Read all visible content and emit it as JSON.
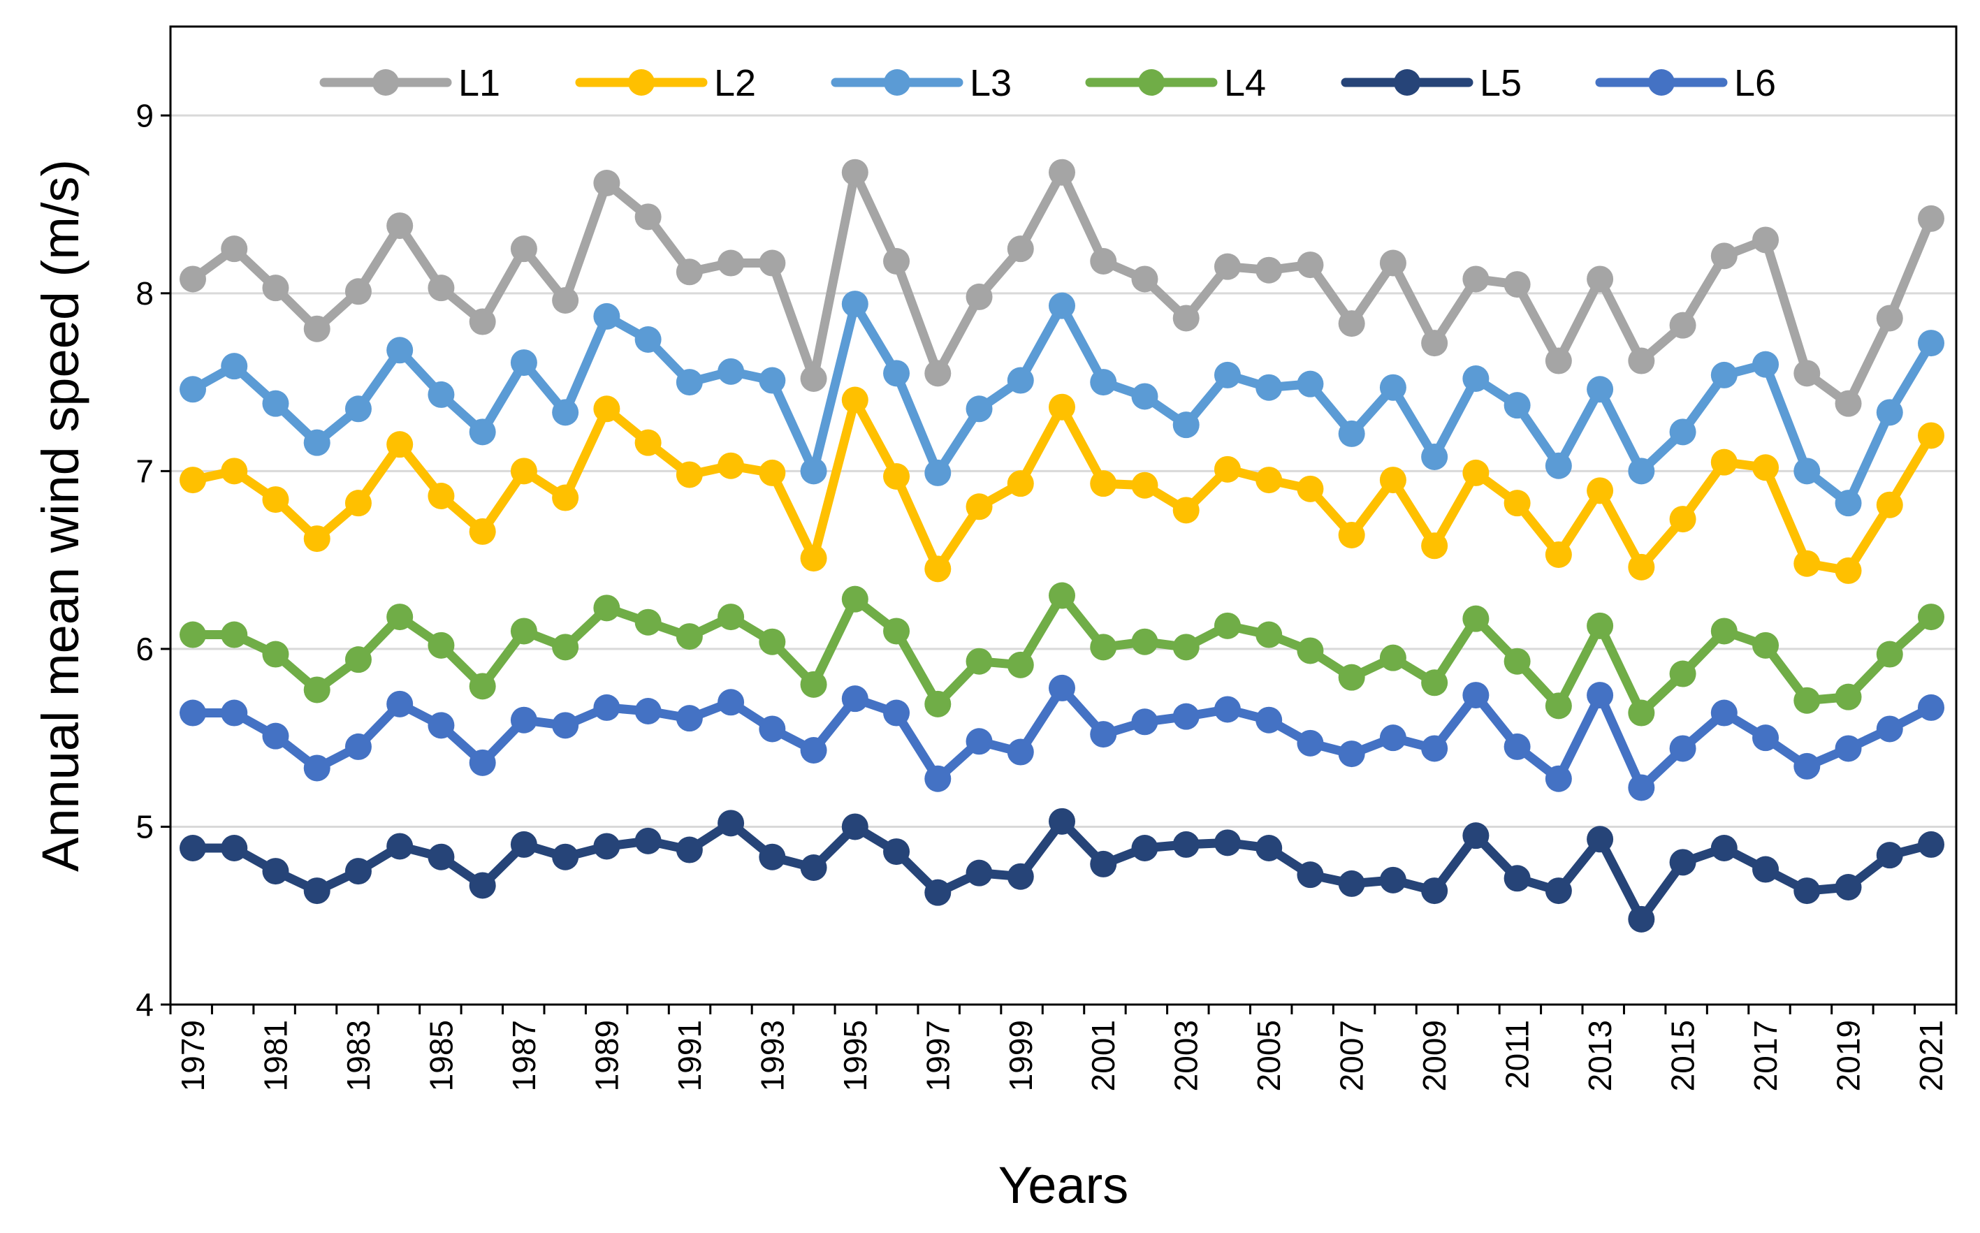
{
  "chart_data": {
    "type": "line",
    "title": "",
    "xlabel": "Years",
    "ylabel": "Annual mean wind speed (m/s)",
    "ylim": [
      4,
      9.5
    ],
    "yticks": [
      4,
      5,
      6,
      7,
      8,
      9
    ],
    "ytick_labels": [
      "4",
      "5",
      "6",
      "7",
      "8",
      "9"
    ],
    "grid": true,
    "legend_position": "top",
    "x": [
      1979,
      1980,
      1981,
      1982,
      1983,
      1984,
      1985,
      1986,
      1987,
      1988,
      1989,
      1990,
      1991,
      1992,
      1993,
      1994,
      1995,
      1996,
      1997,
      1998,
      1999,
      2000,
      2001,
      2002,
      2003,
      2004,
      2005,
      2006,
      2007,
      2008,
      2009,
      2010,
      2011,
      2012,
      2013,
      2014,
      2015,
      2016,
      2017,
      2018,
      2019,
      2020,
      2021
    ],
    "xtick_labels": [
      "1979",
      "1981",
      "1983",
      "1985",
      "1987",
      "1989",
      "1991",
      "1993",
      "1995",
      "1997",
      "1999",
      "2001",
      "2003",
      "2005",
      "2007",
      "2009",
      "2011",
      "2013",
      "2015",
      "2017",
      "2019",
      "2021"
    ],
    "series": [
      {
        "name": "L1",
        "color": "#A5A5A5",
        "values": [
          8.08,
          8.25,
          8.03,
          7.8,
          8.01,
          8.38,
          8.03,
          7.84,
          8.25,
          7.96,
          8.62,
          8.43,
          8.12,
          8.17,
          8.17,
          7.52,
          8.68,
          8.18,
          7.55,
          7.98,
          8.25,
          8.68,
          8.18,
          8.08,
          7.86,
          8.15,
          8.13,
          8.16,
          7.83,
          8.17,
          7.72,
          8.08,
          8.05,
          7.62,
          8.08,
          7.62,
          7.82,
          8.21,
          8.3,
          7.55,
          7.38,
          7.86,
          8.42
        ]
      },
      {
        "name": "L2",
        "color": "#FFC000",
        "values": [
          6.95,
          7.0,
          6.84,
          6.62,
          6.82,
          7.15,
          6.86,
          6.66,
          7.0,
          6.85,
          7.35,
          7.16,
          6.98,
          7.03,
          6.99,
          6.51,
          7.4,
          6.97,
          6.45,
          6.8,
          6.93,
          7.36,
          6.93,
          6.92,
          6.78,
          7.01,
          6.95,
          6.9,
          6.64,
          6.95,
          6.58,
          6.99,
          6.82,
          6.53,
          6.89,
          6.46,
          6.73,
          7.05,
          7.02,
          6.48,
          6.44,
          6.81,
          7.2
        ]
      },
      {
        "name": "L3",
        "color": "#5B9BD5",
        "values": [
          7.46,
          7.59,
          7.38,
          7.16,
          7.35,
          7.68,
          7.43,
          7.22,
          7.61,
          7.33,
          7.87,
          7.74,
          7.5,
          7.56,
          7.51,
          7.0,
          7.94,
          7.55,
          6.99,
          7.35,
          7.51,
          7.93,
          7.5,
          7.42,
          7.26,
          7.54,
          7.47,
          7.49,
          7.21,
          7.47,
          7.08,
          7.52,
          7.37,
          7.03,
          7.46,
          7.0,
          7.22,
          7.54,
          7.6,
          7.0,
          6.82,
          7.33,
          7.72
        ]
      },
      {
        "name": "L4",
        "color": "#70AD47",
        "values": [
          6.08,
          6.08,
          5.97,
          5.77,
          5.94,
          6.18,
          6.02,
          5.79,
          6.1,
          6.01,
          6.23,
          6.15,
          6.07,
          6.18,
          6.04,
          5.8,
          6.28,
          6.1,
          5.69,
          5.93,
          5.91,
          6.3,
          6.01,
          6.04,
          6.01,
          6.13,
          6.08,
          5.99,
          5.84,
          5.95,
          5.81,
          6.17,
          5.93,
          5.68,
          6.13,
          5.64,
          5.86,
          6.1,
          6.02,
          5.71,
          5.73,
          5.97,
          6.18
        ]
      },
      {
        "name": "L5",
        "color": "#264478",
        "values": [
          4.88,
          4.88,
          4.75,
          4.64,
          4.75,
          4.89,
          4.83,
          4.67,
          4.9,
          4.83,
          4.89,
          4.92,
          4.87,
          5.02,
          4.83,
          4.77,
          5.0,
          4.86,
          4.63,
          4.74,
          4.72,
          5.03,
          4.79,
          4.88,
          4.9,
          4.91,
          4.88,
          4.73,
          4.68,
          4.7,
          4.64,
          4.95,
          4.71,
          4.64,
          4.93,
          4.48,
          4.8,
          4.88,
          4.76,
          4.64,
          4.66,
          4.84,
          4.9
        ]
      },
      {
        "name": "L6",
        "color": "#4472C4",
        "values": [
          5.64,
          5.64,
          5.51,
          5.33,
          5.45,
          5.69,
          5.57,
          5.36,
          5.6,
          5.57,
          5.67,
          5.65,
          5.61,
          5.7,
          5.55,
          5.43,
          5.72,
          5.64,
          5.27,
          5.48,
          5.42,
          5.78,
          5.52,
          5.59,
          5.62,
          5.66,
          5.6,
          5.47,
          5.41,
          5.5,
          5.44,
          5.74,
          5.45,
          5.27,
          5.74,
          5.22,
          5.44,
          5.64,
          5.5,
          5.34,
          5.44,
          5.55,
          5.67
        ]
      }
    ]
  }
}
